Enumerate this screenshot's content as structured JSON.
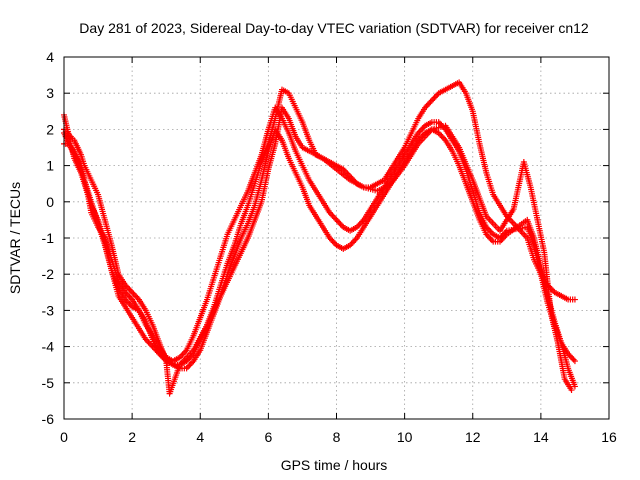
{
  "chart_data": {
    "type": "scatter",
    "title": "Day 281 of 2023, Sidereal Day-to-day VTEC variation (SDTVAR) for receiver cn12",
    "xlabel": "GPS time / hours",
    "ylabel": "SDTVAR / TECUs",
    "xlim": [
      0,
      16
    ],
    "ylim": [
      -6,
      4
    ],
    "xticks": [
      "0",
      "2",
      "4",
      "6",
      "8",
      "10",
      "12",
      "14",
      "16"
    ],
    "yticks": [
      "-6",
      "-5",
      "-4",
      "-3",
      "-2",
      "-1",
      "0",
      "1",
      "2",
      "3",
      "4"
    ],
    "grid": true,
    "marker": "+",
    "color": "#ff0000",
    "series": [
      {
        "x": [
          0.0,
          0.1,
          0.2,
          0.3,
          0.4,
          0.5,
          0.6,
          0.7,
          0.8,
          1.0,
          1.2,
          1.4,
          1.6,
          1.8,
          2.0,
          2.2,
          2.4,
          2.6,
          2.8,
          3.0,
          3.2,
          3.4,
          3.6,
          3.8,
          4.0,
          4.2,
          4.4,
          4.6,
          4.8,
          5.0,
          5.2,
          5.4,
          5.6,
          5.8,
          6.0,
          6.2,
          6.4,
          6.6,
          6.8,
          7.0,
          7.2,
          7.4,
          7.6,
          7.8,
          8.0,
          8.2,
          8.4,
          8.6,
          8.8,
          9.0,
          9.2,
          9.4,
          9.6,
          9.8,
          10.0,
          10.2,
          10.4,
          10.6,
          10.8,
          11.0,
          11.2,
          11.4,
          11.6,
          11.8,
          12.0,
          12.2,
          12.4,
          12.6,
          12.8,
          13.0,
          13.6,
          13.8,
          14.0,
          14.2,
          14.4,
          14.6,
          14.8,
          15.0
        ],
        "y": [
          2.4,
          2.0,
          1.6,
          1.2,
          1.0,
          0.8,
          0.5,
          0.2,
          -0.1,
          -0.5,
          -1.1,
          -1.9,
          -2.4,
          -2.7,
          -2.9,
          -3.0,
          -3.3,
          -3.8,
          -4.2,
          -4.4,
          -4.5,
          -4.5,
          -4.4,
          -4.2,
          -3.8,
          -3.4,
          -2.9,
          -2.3,
          -1.7,
          -1.2,
          -0.6,
          -0.1,
          0.5,
          1.1,
          1.6,
          2.3,
          3.1,
          3.0,
          2.6,
          2.2,
          1.7,
          1.3,
          1.2,
          1.1,
          1.0,
          0.9,
          0.7,
          0.5,
          0.4,
          0.4,
          0.5,
          0.6,
          0.9,
          1.2,
          1.5,
          1.9,
          2.3,
          2.6,
          2.8,
          3.0,
          3.1,
          3.2,
          3.3,
          3.0,
          2.5,
          1.6,
          0.8,
          0.2,
          -0.1,
          -0.4,
          -1.0,
          -1.6,
          -2.0,
          -2.3,
          -2.5,
          -2.6,
          -2.7,
          -2.7
        ]
      },
      {
        "x": [
          0.0,
          0.1,
          0.2,
          0.3,
          0.4,
          0.5,
          0.6,
          0.7,
          0.8,
          1.0,
          1.2,
          1.4,
          1.6,
          1.8,
          2.0,
          2.2,
          2.4,
          2.6,
          2.8,
          3.0,
          3.2,
          3.4,
          3.6,
          3.8,
          4.0,
          4.2,
          4.4,
          4.6,
          4.8,
          5.0,
          5.2,
          5.4,
          5.6,
          5.8,
          6.0,
          6.2,
          6.4,
          6.6,
          6.8,
          7.0,
          7.2,
          7.4,
          7.6,
          7.8,
          8.0,
          8.2,
          8.4,
          8.6,
          8.8,
          9.0,
          9.2,
          9.4,
          9.6,
          9.8,
          10.0,
          10.2,
          10.4,
          10.6,
          10.8,
          11.0,
          11.2,
          11.4,
          11.6,
          11.8,
          12.0,
          12.2,
          12.4,
          12.6,
          12.8,
          13.0,
          13.6,
          13.8,
          14.0,
          14.2,
          14.4,
          14.6,
          14.8,
          15.0
        ],
        "y": [
          1.9,
          1.7,
          1.5,
          1.3,
          1.1,
          0.9,
          0.6,
          0.3,
          0.0,
          -0.6,
          -1.2,
          -1.9,
          -2.6,
          -2.9,
          -3.2,
          -3.5,
          -3.8,
          -4.0,
          -4.2,
          -4.3,
          -4.4,
          -4.3,
          -4.1,
          -3.7,
          -3.2,
          -2.7,
          -2.1,
          -1.5,
          -0.9,
          -0.5,
          -0.1,
          0.3,
          0.8,
          1.3,
          2.0,
          2.6,
          2.3,
          1.9,
          1.4,
          1.0,
          0.6,
          0.3,
          0.0,
          -0.3,
          -0.5,
          -0.7,
          -0.8,
          -0.7,
          -0.5,
          -0.2,
          0.1,
          0.4,
          0.7,
          1.0,
          1.3,
          1.6,
          1.9,
          2.1,
          2.2,
          2.2,
          2.0,
          1.7,
          1.4,
          0.9,
          0.3,
          -0.3,
          -0.7,
          -0.9,
          -1.0,
          -0.8,
          -0.7,
          -1.2,
          -2.0,
          -2.8,
          -3.4,
          -3.9,
          -4.2,
          -4.4
        ]
      },
      {
        "x": [
          0.0,
          0.1,
          0.2,
          0.3,
          0.4,
          0.5,
          0.6,
          0.7,
          0.8,
          1.0,
          1.2,
          1.4,
          1.6,
          1.8,
          2.0,
          2.2,
          2.4,
          2.6,
          2.8,
          3.0,
          3.2,
          3.4,
          3.6,
          3.8,
          4.0,
          4.2,
          4.4,
          4.6,
          4.8,
          5.0,
          5.2,
          5.4,
          5.6,
          5.8,
          6.0,
          6.2,
          6.4,
          6.6,
          6.8,
          7.0,
          7.2,
          7.4,
          7.6,
          7.8,
          8.0,
          8.2,
          8.4,
          8.6,
          8.8,
          9.0,
          9.2,
          9.4,
          9.6,
          9.8,
          10.0,
          10.2,
          10.4,
          10.6,
          10.8,
          11.0,
          11.2,
          11.4,
          11.6,
          11.8,
          12.0,
          12.2,
          12.4,
          12.6,
          12.8,
          13.0,
          13.6,
          13.8,
          14.0,
          14.2,
          14.4,
          14.6,
          14.8,
          15.0
        ],
        "y": [
          1.6,
          1.6,
          1.5,
          1.4,
          1.2,
          1.0,
          0.6,
          0.2,
          -0.3,
          -0.7,
          -1.0,
          -1.6,
          -2.2,
          -2.5,
          -2.7,
          -3.0,
          -3.4,
          -3.7,
          -4.0,
          -4.3,
          -4.5,
          -4.6,
          -4.6,
          -4.4,
          -4.1,
          -3.6,
          -3.1,
          -2.6,
          -2.0,
          -1.5,
          -1.0,
          -0.6,
          -0.1,
          0.6,
          1.4,
          2.0,
          1.7,
          1.2,
          0.8,
          0.4,
          -0.1,
          -0.4,
          -0.7,
          -1.0,
          -1.2,
          -1.3,
          -1.2,
          -1.0,
          -0.7,
          -0.4,
          -0.1,
          0.2,
          0.5,
          0.8,
          1.1,
          1.4,
          1.7,
          1.9,
          2.0,
          1.9,
          1.7,
          1.4,
          1.0,
          0.5,
          0.0,
          -0.5,
          -0.9,
          -1.1,
          -1.1,
          -0.9,
          -0.5,
          -1.0,
          -1.8,
          -2.6,
          -3.3,
          -3.9,
          -4.6,
          -5.1
        ]
      },
      {
        "x": [
          0.0,
          0.1,
          0.2,
          0.3,
          0.4,
          0.5,
          0.6,
          0.8,
          1.0,
          1.2,
          1.4,
          1.6,
          1.8,
          2.0,
          2.2,
          2.4,
          2.6,
          2.8,
          3.0,
          3.1,
          3.4,
          3.8,
          4.2,
          4.6,
          5.0,
          5.4,
          5.8,
          6.0,
          6.2,
          6.4,
          6.6,
          6.8,
          7.0,
          7.2,
          7.6,
          8.0,
          8.4,
          8.8,
          9.2,
          9.6,
          10.0,
          10.4,
          10.8,
          11.2,
          11.6,
          12.0,
          12.4,
          12.8,
          13.2,
          13.5,
          13.7,
          13.9,
          14.1,
          14.3,
          14.5,
          14.7,
          14.9
        ],
        "y": [
          2.0,
          1.9,
          1.8,
          1.7,
          1.5,
          1.3,
          1.0,
          0.6,
          0.2,
          -0.5,
          -1.2,
          -2.0,
          -2.3,
          -2.5,
          -2.7,
          -3.0,
          -3.4,
          -3.9,
          -4.4,
          -5.3,
          -4.5,
          -4.1,
          -3.4,
          -2.6,
          -1.8,
          -1.0,
          0.0,
          0.9,
          1.6,
          2.6,
          2.3,
          1.8,
          1.5,
          1.4,
          1.2,
          0.9,
          0.6,
          0.4,
          0.3,
          0.5,
          1.0,
          1.6,
          2.0,
          2.1,
          1.5,
          0.6,
          -0.4,
          -0.8,
          -0.2,
          1.1,
          0.4,
          -0.5,
          -1.4,
          -3.1,
          -3.9,
          -4.9,
          -5.2
        ]
      }
    ]
  }
}
